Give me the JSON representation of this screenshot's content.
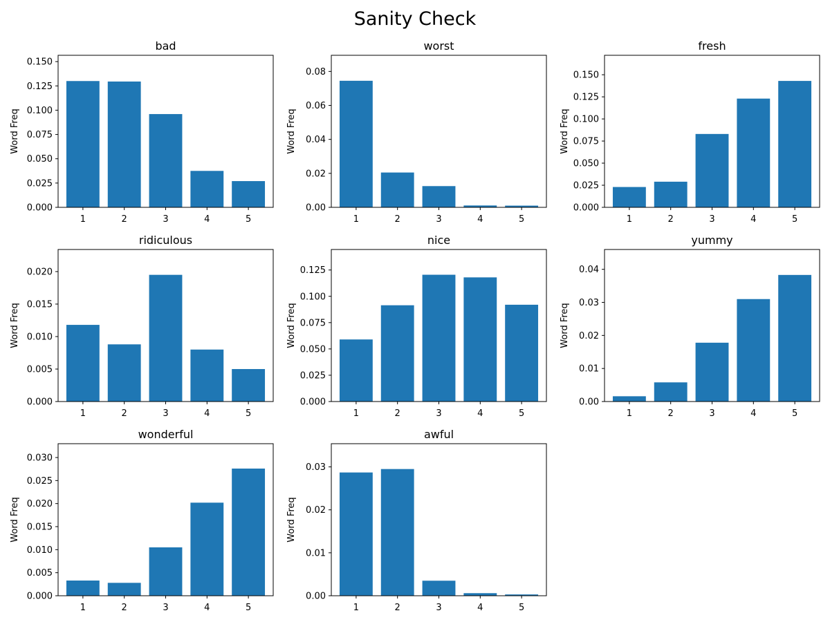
{
  "figure": {
    "title": "Sanity Check"
  },
  "style": {
    "bar_color": "#1f77b4",
    "axis_color": "#000000",
    "background": "#ffffff"
  },
  "chart_data": [
    {
      "type": "bar",
      "title": "bad",
      "xlabel": "",
      "ylabel": "Word Freq",
      "categories": [
        "1",
        "2",
        "3",
        "4",
        "5"
      ],
      "values": [
        0.13,
        0.1295,
        0.096,
        0.0375,
        0.027
      ],
      "ylim": [
        0,
        0.1565
      ],
      "yticks": [
        "0.000",
        "0.025",
        "0.050",
        "0.075",
        "0.100",
        "0.125",
        "0.150"
      ],
      "ytick_values": [
        0,
        0.025,
        0.05,
        0.075,
        0.1,
        0.125,
        0.15
      ]
    },
    {
      "type": "bar",
      "title": "worst",
      "xlabel": "",
      "ylabel": "Word Freq",
      "categories": [
        "1",
        "2",
        "3",
        "4",
        "5"
      ],
      "values": [
        0.0745,
        0.0205,
        0.0125,
        0.0011,
        0.001
      ],
      "ylim": [
        0,
        0.0895
      ],
      "yticks": [
        "0.00",
        "0.02",
        "0.04",
        "0.06",
        "0.08"
      ],
      "ytick_values": [
        0,
        0.02,
        0.04,
        0.06,
        0.08
      ]
    },
    {
      "type": "bar",
      "title": "fresh",
      "xlabel": "",
      "ylabel": "Word Freq",
      "categories": [
        "1",
        "2",
        "3",
        "4",
        "5"
      ],
      "values": [
        0.023,
        0.029,
        0.083,
        0.123,
        0.143
      ],
      "ylim": [
        0,
        0.172
      ],
      "yticks": [
        "0.000",
        "0.025",
        "0.050",
        "0.075",
        "0.100",
        "0.125",
        "0.150"
      ],
      "ytick_values": [
        0,
        0.025,
        0.05,
        0.075,
        0.1,
        0.125,
        0.15
      ]
    },
    {
      "type": "bar",
      "title": "ridiculous",
      "xlabel": "",
      "ylabel": "Word Freq",
      "categories": [
        "1",
        "2",
        "3",
        "4",
        "5"
      ],
      "values": [
        0.0118,
        0.0088,
        0.0195,
        0.008,
        0.005
      ],
      "ylim": [
        0,
        0.0234
      ],
      "yticks": [
        "0.000",
        "0.005",
        "0.010",
        "0.015",
        "0.020"
      ],
      "ytick_values": [
        0,
        0.005,
        0.01,
        0.015,
        0.02
      ]
    },
    {
      "type": "bar",
      "title": "nice",
      "xlabel": "",
      "ylabel": "Word Freq",
      "categories": [
        "1",
        "2",
        "3",
        "4",
        "5"
      ],
      "values": [
        0.059,
        0.0915,
        0.1205,
        0.118,
        0.092
      ],
      "ylim": [
        0,
        0.1445
      ],
      "yticks": [
        "0.000",
        "0.025",
        "0.050",
        "0.075",
        "0.100",
        "0.125"
      ],
      "ytick_values": [
        0,
        0.025,
        0.05,
        0.075,
        0.1,
        0.125
      ]
    },
    {
      "type": "bar",
      "title": "yummy",
      "xlabel": "",
      "ylabel": "Word Freq",
      "categories": [
        "1",
        "2",
        "3",
        "4",
        "5"
      ],
      "values": [
        0.0016,
        0.0058,
        0.0178,
        0.031,
        0.0383
      ],
      "ylim": [
        0,
        0.046
      ],
      "yticks": [
        "0.00",
        "0.01",
        "0.02",
        "0.03",
        "0.04"
      ],
      "ytick_values": [
        0,
        0.01,
        0.02,
        0.03,
        0.04
      ]
    },
    {
      "type": "bar",
      "title": "wonderful",
      "xlabel": "",
      "ylabel": "Word Freq",
      "categories": [
        "1",
        "2",
        "3",
        "4",
        "5"
      ],
      "values": [
        0.0033,
        0.0028,
        0.0105,
        0.0202,
        0.0276
      ],
      "ylim": [
        0,
        0.033
      ],
      "yticks": [
        "0.000",
        "0.005",
        "0.010",
        "0.015",
        "0.020",
        "0.025",
        "0.030"
      ],
      "ytick_values": [
        0,
        0.005,
        0.01,
        0.015,
        0.02,
        0.025,
        0.03
      ]
    },
    {
      "type": "bar",
      "title": "awful",
      "xlabel": "",
      "ylabel": "Word Freq",
      "categories": [
        "1",
        "2",
        "3",
        "4",
        "5"
      ],
      "values": [
        0.0287,
        0.0295,
        0.0035,
        0.0006,
        0.0003
      ],
      "ylim": [
        0,
        0.0354
      ],
      "yticks": [
        "0.00",
        "0.01",
        "0.02",
        "0.03"
      ],
      "ytick_values": [
        0,
        0.01,
        0.02,
        0.03
      ]
    }
  ]
}
